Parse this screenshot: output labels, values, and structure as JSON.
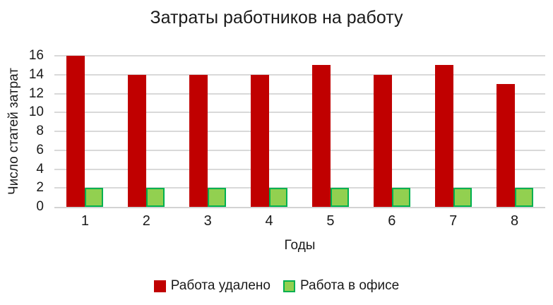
{
  "title": "Затраты работников на работу",
  "chart_data": {
    "type": "bar",
    "title": "Затраты работников на работу",
    "xlabel": "Годы",
    "ylabel": "Число статей затрат",
    "categories": [
      "1",
      "2",
      "3",
      "4",
      "5",
      "6",
      "7",
      "8"
    ],
    "series": [
      {
        "name": "Работа удалено",
        "values": [
          16,
          14,
          14,
          14,
          15,
          14,
          15,
          13
        ],
        "color": "#C00000",
        "border_color": null
      },
      {
        "name": "Работа в офисе",
        "values": [
          2,
          2,
          2,
          2,
          2,
          2,
          2,
          2
        ],
        "color": "#92D050",
        "border_color": "#00B050"
      }
    ],
    "ylim": [
      0,
      16
    ],
    "y_ticks": [
      0,
      2,
      4,
      6,
      8,
      10,
      12,
      14,
      16
    ],
    "grid": "horizontal",
    "gridline_color": "#D9D9D9",
    "axis_line_color": "#D3D3D3",
    "text_color": "#1A1A1A",
    "background": "#FFFFFF",
    "legend_position": "bottom"
  }
}
